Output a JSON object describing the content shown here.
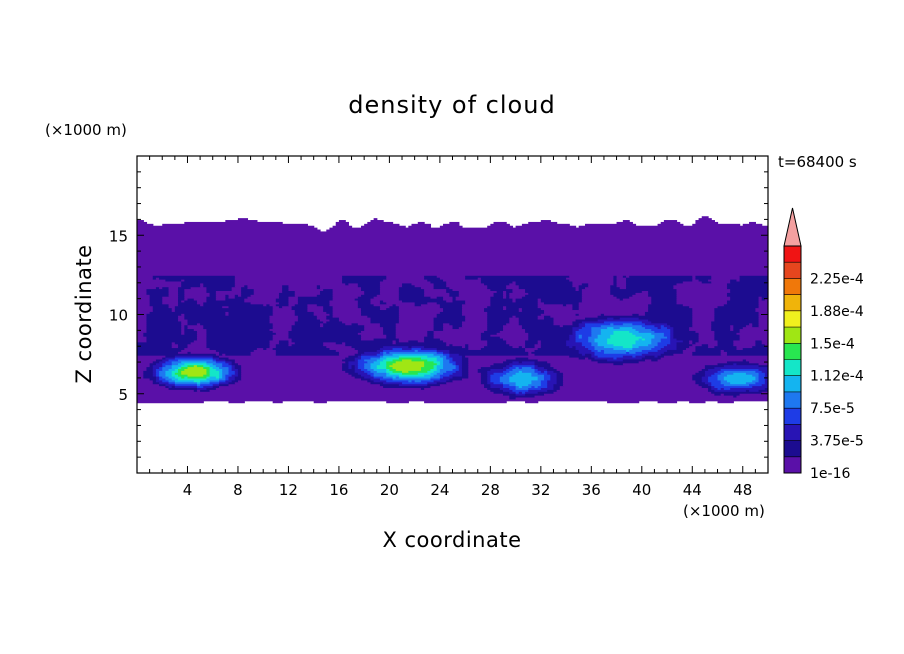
{
  "chart_data": {
    "type": "heatmap",
    "title": "density of cloud",
    "xlabel": "X coordinate",
    "ylabel": "Z coordinate",
    "x_unit": "(×1000 m)",
    "y_unit": "(×1000 m)",
    "time_label": "t=68400 s",
    "xlim": [
      0,
      50
    ],
    "ylim": [
      0,
      20
    ],
    "x_ticks": [
      4,
      8,
      12,
      16,
      20,
      24,
      28,
      32,
      36,
      40,
      44,
      48
    ],
    "y_ticks": [
      5,
      10,
      15
    ],
    "colorbar": {
      "labels": [
        "1e-16",
        "3.75e-5",
        "7.5e-5",
        "1.12e-4",
        "1.5e-4",
        "1.88e-4",
        "2.25e-4"
      ],
      "levels": [
        1e-16,
        1.875e-05,
        3.75e-05,
        5.625e-05,
        7.5e-05,
        9.375e-05,
        0.0001125,
        0.00013125,
        0.00015,
        0.00016875,
        0.0001875,
        0.00020625,
        0.000225,
        0.00024375
      ],
      "colors": [
        "#5a10a8",
        "#1c0c90",
        "#2814b4",
        "#1e3ce6",
        "#1e78f0",
        "#14b4f0",
        "#14e6c8",
        "#28e650",
        "#a0e614",
        "#f0f01e",
        "#f0b40a",
        "#f0780a",
        "#e6461e",
        "#f01414"
      ],
      "overflow_color": "#f4a0a0"
    },
    "regions": {
      "cloud_layer": {
        "x": [
          0,
          50
        ],
        "z_bottom": 4.5,
        "z_top": 16.2,
        "level": 0
      },
      "mid_layer": {
        "x": [
          0,
          50
        ],
        "z": [
          7.5,
          12.5
        ],
        "level": 1
      },
      "cores": [
        {
          "x_center": 4.5,
          "z_center": 6.4,
          "x_half": 4.0,
          "z_half": 1.2,
          "peak_level": 8
        },
        {
          "x_center": 21.5,
          "z_center": 6.8,
          "x_half": 5.0,
          "z_half": 1.4,
          "peak_level": 8
        },
        {
          "x_center": 30.5,
          "z_center": 6.0,
          "x_half": 3.5,
          "z_half": 1.3,
          "peak_level": 5
        },
        {
          "x_center": 38.5,
          "z_center": 8.5,
          "x_half": 5.5,
          "z_half": 1.6,
          "peak_level": 6
        },
        {
          "x_center": 47.5,
          "z_center": 6.0,
          "x_half": 3.5,
          "z_half": 1.1,
          "peak_level": 5
        }
      ]
    }
  }
}
